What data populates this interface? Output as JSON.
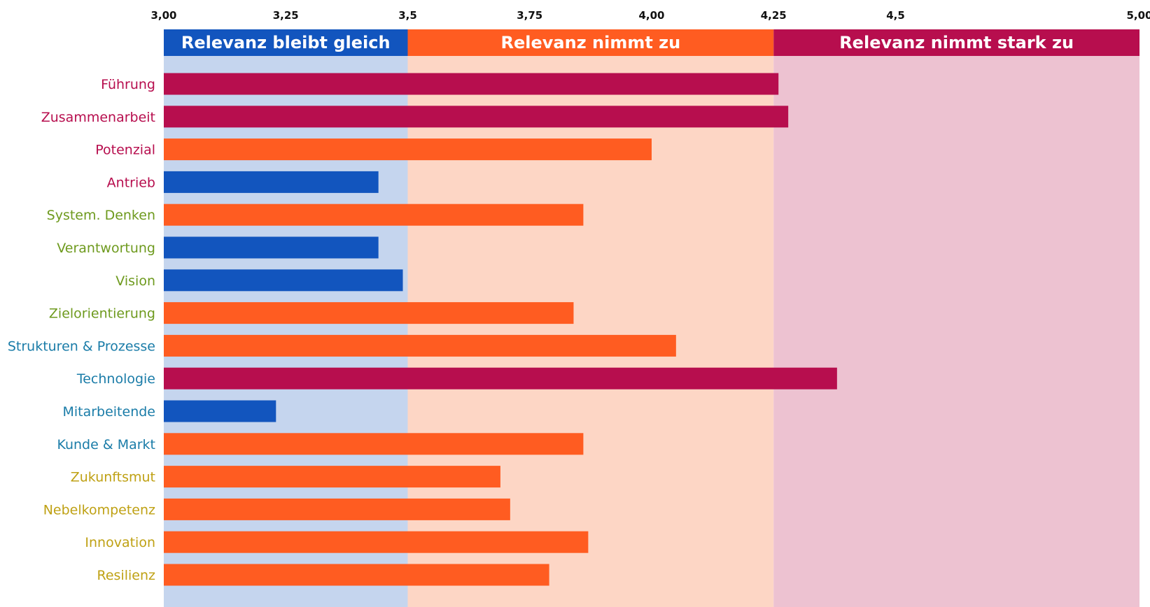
{
  "chart_data": {
    "type": "bar",
    "orientation": "horizontal",
    "title": "",
    "xlabel": "",
    "ylabel": "",
    "xlim": [
      3.0,
      5.0
    ],
    "x_axis_position": "top",
    "ticks": [
      {
        "value": 3.0,
        "label": "3,00"
      },
      {
        "value": 3.25,
        "label": "3,25"
      },
      {
        "value": 3.5,
        "label": "3,5"
      },
      {
        "value": 3.75,
        "label": "3,75"
      },
      {
        "value": 4.0,
        "label": "4,00"
      },
      {
        "value": 4.25,
        "label": "4,25"
      },
      {
        "value": 4.5,
        "label": "4,5"
      },
      {
        "value": 5.0,
        "label": "5,00"
      }
    ],
    "zones": [
      {
        "label": "Relevanz bleibt gleich",
        "from": 3.0,
        "to": 3.5,
        "color": "#1255BE",
        "bg": "#C5D5EE"
      },
      {
        "label": "Relevanz nimmt zu",
        "from": 3.5,
        "to": 4.25,
        "color": "#FF5C21",
        "bg": "#FDD6C5"
      },
      {
        "label": "Relevanz nimmt stark zu",
        "from": 4.25,
        "to": 5.0,
        "color": "#B70E4E",
        "bg": "#EDC2D1"
      }
    ],
    "categories": [
      {
        "label": "Führung",
        "value": 4.26,
        "group_color": "#B70E4E"
      },
      {
        "label": "Zusammenarbeit",
        "value": 4.28,
        "group_color": "#B70E4E"
      },
      {
        "label": "Potenzial",
        "value": 4.0,
        "group_color": "#B70E4E"
      },
      {
        "label": "Antrieb",
        "value": 3.44,
        "group_color": "#B70E4E"
      },
      {
        "label": "System. Denken",
        "value": 3.86,
        "group_color": "#6E9A1E"
      },
      {
        "label": "Verantwortung",
        "value": 3.44,
        "group_color": "#6E9A1E"
      },
      {
        "label": "Vision",
        "value": 3.49,
        "group_color": "#6E9A1E"
      },
      {
        "label": "Zielorientierung",
        "value": 3.84,
        "group_color": "#6E9A1E"
      },
      {
        "label": "Strukturen & Prozesse",
        "value": 4.05,
        "group_color": "#1A7CA8"
      },
      {
        "label": "Technologie",
        "value": 4.38,
        "group_color": "#1A7CA8"
      },
      {
        "label": "Mitarbeitende",
        "value": 3.23,
        "group_color": "#1A7CA8"
      },
      {
        "label": "Kunde & Markt",
        "value": 3.86,
        "group_color": "#1A7CA8"
      },
      {
        "label": "Zukunftsmut",
        "value": 3.69,
        "group_color": "#BFA114"
      },
      {
        "label": "Nebelkompetenz",
        "value": 3.71,
        "group_color": "#BFA114"
      },
      {
        "label": "Innovation",
        "value": 3.87,
        "group_color": "#BFA114"
      },
      {
        "label": "Resilienz",
        "value": 3.79,
        "group_color": "#BFA114"
      }
    ]
  }
}
